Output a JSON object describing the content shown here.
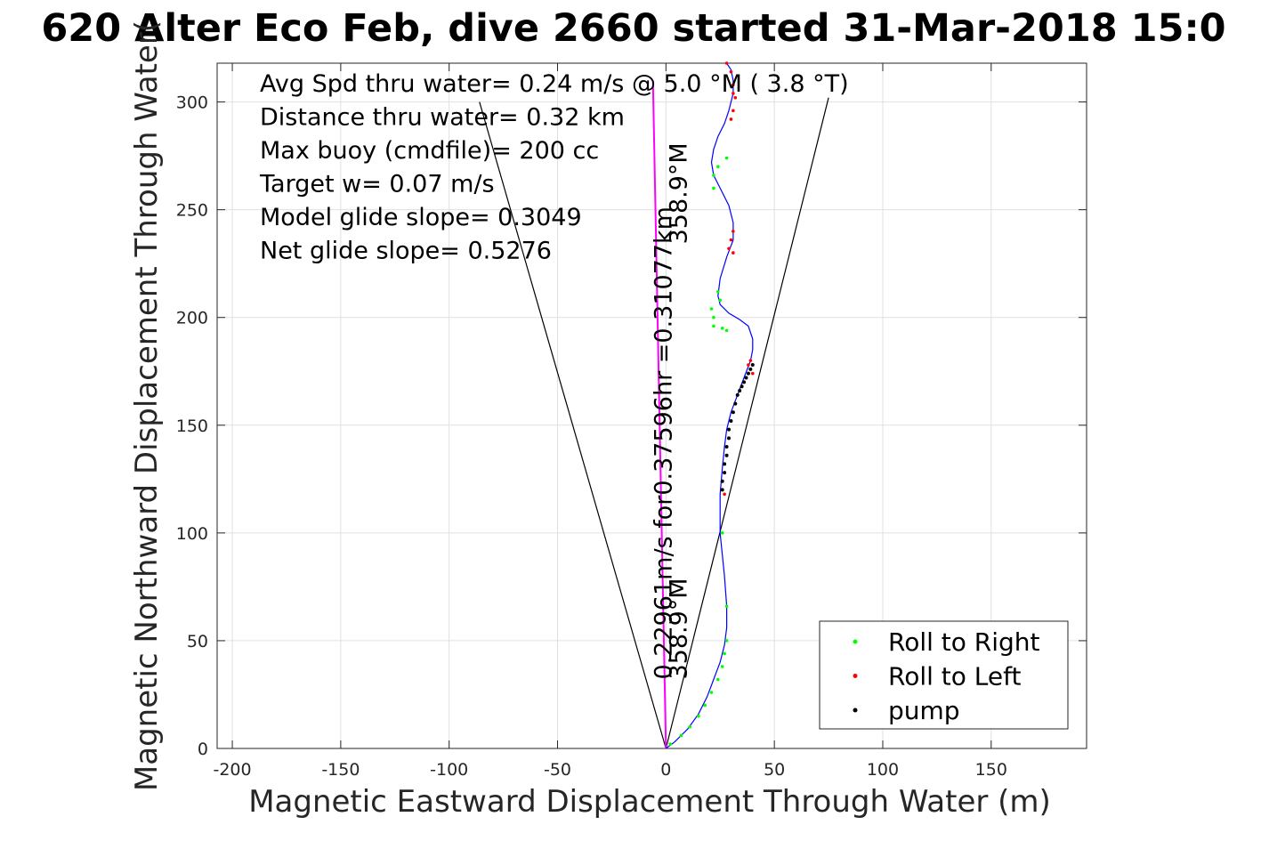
{
  "chart_data": {
    "type": "line",
    "title": "620 Alter Eco Feb, dive 2660 started 31-Mar-2018 15:0",
    "xlabel": "Magnetic Eastward Displacement Through Water (m)",
    "ylabel": "Magnetic Northward Displacement Through Water(",
    "xlim": [
      -207,
      194
    ],
    "ylim": [
      0,
      318
    ],
    "xticks": [
      -200,
      -150,
      -100,
      -50,
      0,
      50,
      100,
      150
    ],
    "xtick_labels": [
      "-200",
      "-150",
      "-100",
      "-50",
      "0",
      "50",
      "100",
      "150"
    ],
    "yticks": [
      0,
      50,
      100,
      150,
      200,
      250,
      300
    ],
    "ytick_labels": [
      "0",
      "50",
      "100",
      "150",
      "200",
      "250",
      "300"
    ],
    "grid": true,
    "legend_position": "bottom-right",
    "legend": [
      {
        "label": "Roll to Right",
        "color": "#00ff00"
      },
      {
        "label": "Roll to Left",
        "color": "#ff0000"
      },
      {
        "label": "pump",
        "color": "#000000"
      }
    ],
    "stats_text": [
      "Avg Spd thru water=  0.24 m/s @   5.0 °M (  3.8 °T)",
      "Distance thru water=  0.32 km",
      "Max buoy (cmdfile)= 200 cc",
      "Target w= 0.07 m/s",
      "Model glide slope= 0.3049",
      "Net glide slope= 0.5276"
    ],
    "rotated_labels": [
      {
        "text": "0.22961m/s for0.37596hr =0.31077km",
        "x": 0,
        "y": 32
      },
      {
        "text": "358.9°M",
        "x": 7,
        "y": 32
      },
      {
        "text": "358.9°M",
        "x": 7,
        "y": 234
      }
    ],
    "track": {
      "name": "track",
      "color": "#0000ff",
      "x": [
        0,
        4,
        10,
        15,
        19,
        22,
        25,
        27,
        28,
        28,
        27,
        25,
        25,
        26,
        27,
        28,
        30,
        33,
        36,
        39,
        40,
        40,
        38,
        34,
        29,
        25,
        24,
        25,
        28,
        31,
        31,
        29,
        25,
        22,
        21,
        22,
        24,
        27,
        29,
        31,
        31,
        30,
        28
      ],
      "y": [
        0,
        3,
        9,
        16,
        24,
        32,
        40,
        48,
        56,
        66,
        80,
        100,
        118,
        130,
        140,
        148,
        156,
        164,
        172,
        180,
        185,
        190,
        196,
        199,
        202,
        206,
        210,
        218,
        228,
        236,
        244,
        252,
        260,
        266,
        272,
        278,
        284,
        290,
        296,
        304,
        310,
        315,
        318
      ]
    },
    "heading_lines": {
      "name": "heading reference lines",
      "color": "#000000",
      "lines": [
        {
          "x": [
            0,
            -86
          ],
          "y": [
            0,
            300
          ]
        },
        {
          "x": [
            0,
            75
          ],
          "y": [
            0,
            302
          ]
        }
      ]
    },
    "mean_vector": {
      "name": "mean displacement",
      "color": "#ff00ff",
      "x": [
        0,
        -6
      ],
      "y": [
        0,
        310
      ]
    },
    "roll_right_points": {
      "x": [
        2,
        7,
        11,
        15,
        18,
        21,
        24,
        26,
        27,
        28,
        28,
        26,
        25,
        24,
        22,
        22,
        24,
        28,
        22,
        21,
        22,
        26,
        28
      ],
      "y": [
        2,
        6,
        10,
        15,
        20,
        26,
        32,
        38,
        44,
        50,
        66,
        100,
        208,
        212,
        260,
        266,
        270,
        274,
        200,
        204,
        196,
        195,
        194
      ]
    },
    "roll_left_points": {
      "x": [
        27,
        30,
        31,
        29,
        38,
        40,
        39,
        31,
        31,
        32,
        31,
        28,
        30,
        31,
        30
      ],
      "y": [
        118,
        236,
        240,
        232,
        178,
        174,
        180,
        230,
        296,
        302,
        308,
        318,
        314,
        304,
        292
      ]
    },
    "pump_points": {
      "x": [
        26,
        26,
        27,
        27,
        28,
        28,
        29,
        29,
        30,
        31,
        32,
        33,
        34,
        35,
        36,
        37,
        38,
        39,
        40
      ],
      "y": [
        120,
        124,
        128,
        132,
        136,
        140,
        144,
        148,
        152,
        156,
        160,
        164,
        166,
        168,
        170,
        172,
        174,
        176,
        178
      ]
    }
  }
}
